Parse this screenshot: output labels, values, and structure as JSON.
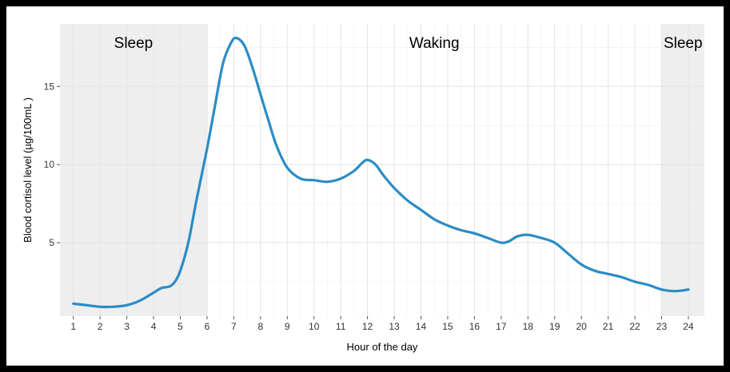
{
  "chart_data": {
    "type": "line",
    "xlabel": "Hour of the day",
    "ylabel": "Blood cortisol level (µg/100mL )",
    "xlim": [
      0.5,
      24.6
    ],
    "ylim": [
      0.3,
      19.0
    ],
    "x_ticks": [
      1,
      2,
      3,
      4,
      5,
      6,
      7,
      8,
      9,
      10,
      11,
      12,
      13,
      14,
      15,
      16,
      17,
      18,
      19,
      20,
      21,
      22,
      23,
      24
    ],
    "y_ticks": [
      5,
      10,
      15
    ],
    "grid": true,
    "regions": [
      {
        "label": "Sleep",
        "from": 0.5,
        "to": 6,
        "shaded": true
      },
      {
        "label": "Waking",
        "from": 6,
        "to": 23,
        "shaded": false
      },
      {
        "label": "Sleep",
        "from": 23,
        "to": 24.6,
        "shaded": true
      }
    ],
    "series": [
      {
        "color": "#2b8cc4",
        "points": [
          [
            1.0,
            1.1
          ],
          [
            1.5,
            1.0
          ],
          [
            2.0,
            0.9
          ],
          [
            2.5,
            0.9
          ],
          [
            3.0,
            1.0
          ],
          [
            3.5,
            1.3
          ],
          [
            4.0,
            1.8
          ],
          [
            4.3,
            2.1
          ],
          [
            4.6,
            2.2
          ],
          [
            4.8,
            2.5
          ],
          [
            5.0,
            3.2
          ],
          [
            5.3,
            5.0
          ],
          [
            5.6,
            7.7
          ],
          [
            6.0,
            11.0
          ],
          [
            6.3,
            13.8
          ],
          [
            6.6,
            16.5
          ],
          [
            6.9,
            17.8
          ],
          [
            7.1,
            18.1
          ],
          [
            7.4,
            17.6
          ],
          [
            7.7,
            16.2
          ],
          [
            8.0,
            14.5
          ],
          [
            8.3,
            12.8
          ],
          [
            8.6,
            11.2
          ],
          [
            9.0,
            9.8
          ],
          [
            9.5,
            9.1
          ],
          [
            10.0,
            9.0
          ],
          [
            10.5,
            8.9
          ],
          [
            11.0,
            9.1
          ],
          [
            11.5,
            9.6
          ],
          [
            11.8,
            10.1
          ],
          [
            12.0,
            10.3
          ],
          [
            12.3,
            10.0
          ],
          [
            12.6,
            9.3
          ],
          [
            13.0,
            8.5
          ],
          [
            13.5,
            7.7
          ],
          [
            14.0,
            7.1
          ],
          [
            14.5,
            6.5
          ],
          [
            15.0,
            6.1
          ],
          [
            15.5,
            5.8
          ],
          [
            16.0,
            5.6
          ],
          [
            16.5,
            5.3
          ],
          [
            17.0,
            5.0
          ],
          [
            17.3,
            5.1
          ],
          [
            17.6,
            5.4
          ],
          [
            18.0,
            5.5
          ],
          [
            18.5,
            5.3
          ],
          [
            19.0,
            5.0
          ],
          [
            19.5,
            4.3
          ],
          [
            20.0,
            3.6
          ],
          [
            20.5,
            3.2
          ],
          [
            21.0,
            3.0
          ],
          [
            21.5,
            2.8
          ],
          [
            22.0,
            2.5
          ],
          [
            22.5,
            2.3
          ],
          [
            23.0,
            2.0
          ],
          [
            23.5,
            1.9
          ],
          [
            24.0,
            2.0
          ]
        ]
      }
    ]
  }
}
